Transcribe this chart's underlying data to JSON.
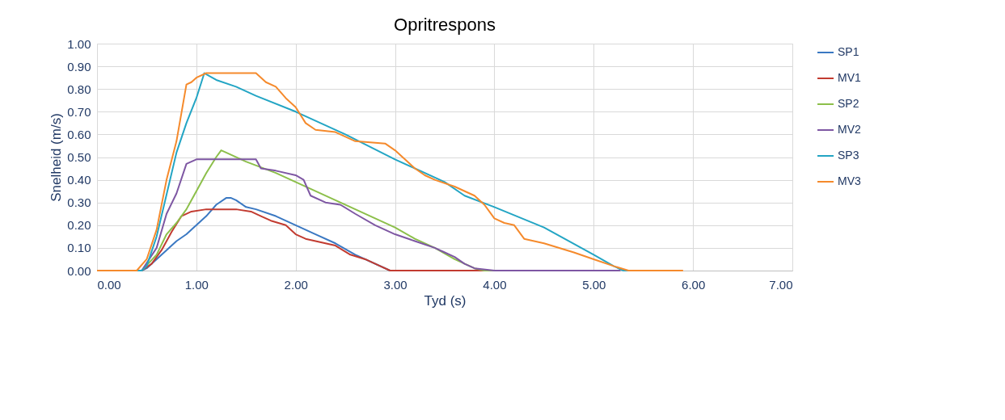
{
  "chart_data": {
    "type": "line",
    "title": "Opritrespons",
    "xlabel": "Tyd (s)",
    "ylabel": "Snelheid (m/s)",
    "xlim": [
      0,
      7
    ],
    "ylim": [
      0,
      1
    ],
    "xticks": [
      {
        "value": 0,
        "label": "0.00"
      },
      {
        "value": 1,
        "label": "1.00"
      },
      {
        "value": 2,
        "label": "2.00"
      },
      {
        "value": 3,
        "label": "3.00"
      },
      {
        "value": 4,
        "label": "4.00"
      },
      {
        "value": 5,
        "label": "5.00"
      },
      {
        "value": 6,
        "label": "6.00"
      },
      {
        "value": 7,
        "label": "7.00"
      }
    ],
    "yticks": [
      {
        "value": 0,
        "label": "0.00"
      },
      {
        "value": 0.1,
        "label": "0.10"
      },
      {
        "value": 0.2,
        "label": "0.20"
      },
      {
        "value": 0.3,
        "label": "0.30"
      },
      {
        "value": 0.4,
        "label": "0.40"
      },
      {
        "value": 0.5,
        "label": "0.50"
      },
      {
        "value": 0.6,
        "label": "0.60"
      },
      {
        "value": 0.7,
        "label": "0.70"
      },
      {
        "value": 0.8,
        "label": "0.80"
      },
      {
        "value": 0.9,
        "label": "0.90"
      },
      {
        "value": 1,
        "label": "1.00"
      }
    ],
    "grid": true,
    "legend": "right",
    "marker": "none",
    "line_style": "solid",
    "series": [
      {
        "name": "SP1",
        "color": "#3a78c2",
        "x": [
          0,
          0.45,
          0.5,
          0.6,
          0.7,
          0.8,
          0.9,
          1.0,
          1.1,
          1.2,
          1.3,
          1.35,
          1.4,
          1.5,
          1.6,
          1.8,
          2.0,
          2.2,
          2.4,
          2.6,
          2.95,
          4.0
        ],
        "values": [
          0,
          0,
          0.01,
          0.05,
          0.09,
          0.13,
          0.16,
          0.2,
          0.24,
          0.29,
          0.32,
          0.32,
          0.31,
          0.28,
          0.27,
          0.24,
          0.2,
          0.16,
          0.12,
          0.07,
          0,
          0
        ]
      },
      {
        "name": "MV1",
        "color": "#c23b30",
        "x": [
          0,
          0.45,
          0.55,
          0.65,
          0.75,
          0.85,
          0.95,
          1.1,
          1.4,
          1.55,
          1.65,
          1.75,
          1.9,
          2.0,
          2.1,
          2.3,
          2.4,
          2.55,
          2.7,
          2.85,
          2.95,
          4.0
        ],
        "values": [
          0,
          0,
          0.03,
          0.09,
          0.17,
          0.24,
          0.26,
          0.27,
          0.27,
          0.26,
          0.24,
          0.22,
          0.2,
          0.16,
          0.14,
          0.12,
          0.11,
          0.07,
          0.05,
          0.02,
          0,
          0
        ]
      },
      {
        "name": "SP2",
        "color": "#8cbf4a",
        "x": [
          0,
          0.45,
          0.6,
          0.7,
          0.8,
          0.9,
          1.0,
          1.1,
          1.2,
          1.25,
          1.3,
          1.5,
          1.8,
          2.0,
          2.2,
          2.4,
          2.6,
          2.8,
          3.0,
          3.2,
          3.4,
          3.6,
          3.8,
          3.9,
          4.0
        ],
        "values": [
          0,
          0,
          0.07,
          0.16,
          0.21,
          0.27,
          0.35,
          0.43,
          0.5,
          0.53,
          0.52,
          0.48,
          0.43,
          0.39,
          0.35,
          0.31,
          0.27,
          0.23,
          0.19,
          0.14,
          0.1,
          0.05,
          0.01,
          0,
          0
        ]
      },
      {
        "name": "MV2",
        "color": "#7e57a3",
        "x": [
          0,
          0.45,
          0.6,
          0.7,
          0.8,
          0.9,
          1.0,
          1.6,
          1.65,
          1.8,
          2.0,
          2.08,
          2.15,
          2.3,
          2.45,
          2.6,
          2.8,
          3.0,
          3.2,
          3.4,
          3.5,
          3.6,
          3.7,
          3.8,
          4.0,
          5.27
        ],
        "values": [
          0,
          0,
          0.1,
          0.25,
          0.34,
          0.47,
          0.49,
          0.49,
          0.45,
          0.44,
          0.42,
          0.4,
          0.33,
          0.3,
          0.29,
          0.25,
          0.2,
          0.16,
          0.13,
          0.1,
          0.08,
          0.06,
          0.03,
          0.01,
          0,
          0
        ]
      },
      {
        "name": "SP3",
        "color": "#23a5c4",
        "x": [
          0,
          0.45,
          0.5,
          0.6,
          0.8,
          0.9,
          1.0,
          1.08,
          1.2,
          1.4,
          1.6,
          2.0,
          2.5,
          3.0,
          3.5,
          3.7,
          4.0,
          4.5,
          5.0,
          5.2,
          5.3,
          5.4
        ],
        "values": [
          0,
          0,
          0.02,
          0.15,
          0.52,
          0.65,
          0.76,
          0.87,
          0.84,
          0.81,
          0.77,
          0.7,
          0.6,
          0.49,
          0.39,
          0.33,
          0.28,
          0.19,
          0.07,
          0.02,
          0,
          0
        ]
      },
      {
        "name": "MV3",
        "color": "#f58a2c",
        "x": [
          0,
          0.4,
          0.5,
          0.6,
          0.7,
          0.8,
          0.9,
          0.95,
          1.0,
          1.1,
          1.6,
          1.7,
          1.8,
          1.9,
          2.0,
          2.1,
          2.2,
          2.4,
          2.6,
          2.9,
          3.0,
          3.1,
          3.2,
          3.3,
          3.4,
          3.6,
          3.8,
          3.9,
          4.0,
          4.1,
          4.2,
          4.3,
          4.5,
          4.8,
          5.0,
          5.2,
          5.35,
          5.9
        ],
        "values": [
          0,
          0,
          0.05,
          0.18,
          0.4,
          0.57,
          0.82,
          0.83,
          0.85,
          0.87,
          0.87,
          0.83,
          0.81,
          0.76,
          0.72,
          0.65,
          0.62,
          0.61,
          0.57,
          0.56,
          0.53,
          0.49,
          0.45,
          0.42,
          0.4,
          0.37,
          0.33,
          0.29,
          0.23,
          0.21,
          0.2,
          0.14,
          0.12,
          0.08,
          0.05,
          0.02,
          0,
          0
        ]
      }
    ]
  }
}
